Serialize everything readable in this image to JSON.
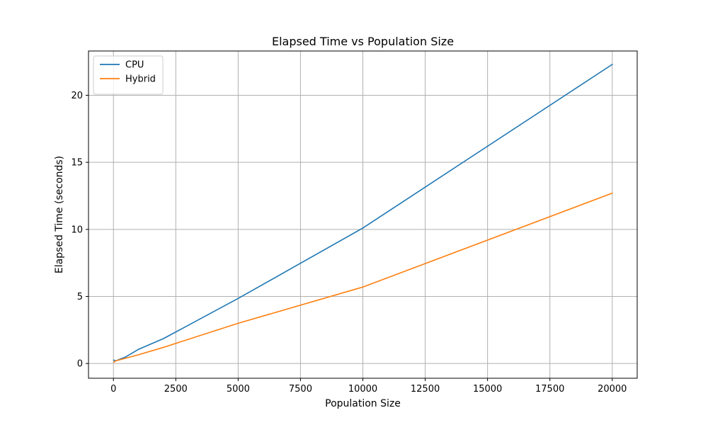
{
  "chart_data": {
    "type": "line",
    "title": "Elapsed Time vs Population Size",
    "xlabel": "Population Size",
    "ylabel": "Elapsed Time (seconds)",
    "xlim": [
      -1000,
      21000
    ],
    "ylim": [
      -1.1,
      23.3
    ],
    "xticks": [
      0,
      2500,
      5000,
      7500,
      10000,
      12500,
      15000,
      17500,
      20000
    ],
    "yticks": [
      0,
      5,
      10,
      15,
      20
    ],
    "grid": true,
    "legend_position": "top-left",
    "series": [
      {
        "name": "CPU",
        "color": "#1f77b4",
        "x": [
          10,
          100,
          500,
          1000,
          2000,
          5000,
          10000,
          20000
        ],
        "y": [
          0.25,
          0.2,
          0.5,
          1.05,
          1.85,
          4.85,
          10.1,
          22.3
        ]
      },
      {
        "name": "Hybrid",
        "color": "#ff7f0e",
        "x": [
          10,
          100,
          500,
          1000,
          2000,
          5000,
          10000,
          20000
        ],
        "y": [
          0.1,
          0.2,
          0.4,
          0.65,
          1.2,
          3.0,
          5.7,
          12.7
        ]
      }
    ]
  }
}
